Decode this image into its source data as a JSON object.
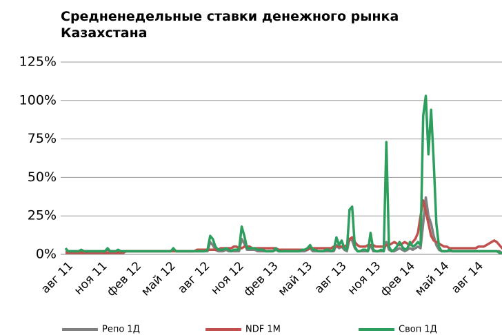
{
  "chart_data": {
    "type": "line",
    "title": "Средненедельные ставки денежного рынка Казахстана",
    "categories": [
      "авг 11",
      null,
      null,
      null,
      null,
      null,
      null,
      null,
      null,
      null,
      null,
      null,
      null,
      "ноя 11",
      null,
      null,
      null,
      null,
      null,
      null,
      null,
      null,
      null,
      null,
      null,
      null,
      "фев 12",
      null,
      null,
      null,
      null,
      null,
      null,
      null,
      null,
      null,
      null,
      null,
      null,
      "май 12",
      null,
      null,
      null,
      null,
      null,
      null,
      null,
      null,
      null,
      null,
      null,
      null,
      "авг 12",
      null,
      null,
      null,
      null,
      null,
      null,
      null,
      null,
      null,
      null,
      null,
      null,
      "ноя 12",
      null,
      null,
      null,
      null,
      null,
      null,
      null,
      null,
      null,
      null,
      null,
      null,
      "фев 13",
      null,
      null,
      null,
      null,
      null,
      null,
      null,
      null,
      null,
      null,
      null,
      null,
      "май 13",
      null,
      null,
      null,
      null,
      null,
      null,
      null,
      null,
      null,
      null,
      null,
      null,
      "авг 13",
      null,
      null,
      null,
      null,
      null,
      null,
      null,
      null,
      null,
      null,
      null,
      null,
      "ноя 13",
      null,
      null,
      null,
      null,
      null,
      null,
      null,
      null,
      null,
      null,
      null,
      null,
      "фев 14",
      null,
      null,
      null,
      null,
      null,
      null,
      null,
      null,
      null,
      null,
      null,
      null,
      "май 14",
      null,
      null,
      null,
      null,
      null,
      null,
      null,
      null,
      null,
      null,
      null,
      null,
      "авг 14",
      null,
      null,
      null,
      null,
      null,
      null,
      null,
      null,
      null,
      null,
      null
    ],
    "series": [
      {
        "name": "Репо 1Д",
        "color": "#808080",
        "values": [
          2,
          2,
          2,
          2,
          2,
          2,
          2,
          2,
          2,
          2,
          2,
          2,
          2,
          2,
          2,
          2,
          3,
          2,
          2,
          2,
          2,
          2,
          2,
          2,
          2,
          2,
          2,
          2,
          2,
          2,
          2,
          2,
          2,
          2,
          2,
          2,
          2,
          2,
          2,
          2,
          2,
          3,
          2,
          2,
          2,
          2,
          2,
          2,
          2,
          2,
          2,
          2,
          2,
          2,
          2,
          8,
          6,
          3,
          2,
          2,
          2,
          3,
          2,
          2,
          2,
          2,
          2,
          10,
          7,
          3,
          3,
          3,
          3,
          2,
          2,
          2,
          2,
          2,
          2,
          2,
          3,
          2,
          2,
          2,
          2,
          2,
          2,
          2,
          2,
          2,
          2,
          2,
          3,
          4,
          2,
          2,
          2,
          2,
          2,
          2,
          2,
          2,
          2,
          6,
          4,
          5,
          3,
          2,
          10,
          9,
          4,
          2,
          2,
          2,
          2,
          2,
          6,
          2,
          2,
          2,
          2,
          2,
          8,
          3,
          2,
          2,
          3,
          4,
          3,
          2,
          3,
          4,
          3,
          4,
          5,
          4,
          20,
          37,
          25,
          20,
          12,
          6,
          3,
          2,
          2,
          2,
          2,
          2,
          2,
          2,
          2,
          2,
          2,
          2,
          2,
          2,
          2,
          2,
          2,
          2,
          2,
          2,
          2,
          2,
          2,
          2,
          1,
          1
        ]
      },
      {
        "name": "NDF 1M",
        "color": "#c0504d",
        "values": [
          1,
          1,
          1,
          1,
          1,
          1,
          1,
          1,
          1,
          1,
          1,
          1,
          1,
          1,
          1,
          1,
          1,
          1,
          1,
          1,
          1,
          1,
          1,
          2,
          2,
          2,
          2,
          2,
          2,
          2,
          2,
          2,
          2,
          2,
          2,
          2,
          2,
          2,
          2,
          2,
          2,
          2,
          2,
          2,
          2,
          2,
          2,
          2,
          2,
          2,
          3,
          3,
          3,
          3,
          3,
          3,
          3,
          3,
          3,
          4,
          4,
          4,
          4,
          4,
          5,
          5,
          4,
          4,
          5,
          5,
          5,
          4,
          4,
          4,
          4,
          4,
          4,
          4,
          4,
          4,
          4,
          3,
          3,
          3,
          3,
          3,
          3,
          3,
          3,
          3,
          3,
          3,
          3,
          4,
          4,
          4,
          4,
          4,
          4,
          4,
          4,
          4,
          5,
          5,
          5,
          5,
          5,
          6,
          10,
          11,
          8,
          6,
          5,
          5,
          5,
          6,
          6,
          6,
          5,
          5,
          5,
          5,
          6,
          6,
          7,
          8,
          7,
          6,
          7,
          8,
          7,
          6,
          8,
          10,
          14,
          25,
          35,
          28,
          20,
          12,
          9,
          8,
          7,
          6,
          5,
          5,
          4,
          4,
          4,
          4,
          4,
          4,
          4,
          4,
          4,
          4,
          4,
          5,
          5,
          5,
          6,
          7,
          8,
          9,
          8,
          6,
          4,
          3
        ]
      },
      {
        "name": "Своп 1Д",
        "color": "#2e9e5e",
        "values": [
          4,
          2,
          2,
          2,
          2,
          2,
          3,
          2,
          2,
          2,
          2,
          2,
          2,
          2,
          2,
          2,
          4,
          2,
          2,
          2,
          3,
          2,
          2,
          2,
          2,
          2,
          2,
          2,
          2,
          2,
          2,
          2,
          2,
          2,
          2,
          2,
          2,
          2,
          2,
          2,
          2,
          4,
          2,
          2,
          2,
          2,
          2,
          2,
          2,
          2,
          2,
          2,
          2,
          2,
          3,
          12,
          10,
          5,
          3,
          3,
          3,
          4,
          3,
          2,
          3,
          3,
          3,
          18,
          12,
          4,
          4,
          4,
          4,
          3,
          3,
          3,
          2,
          2,
          2,
          2,
          4,
          2,
          2,
          2,
          2,
          2,
          2,
          2,
          2,
          2,
          3,
          3,
          4,
          6,
          3,
          3,
          2,
          2,
          2,
          3,
          3,
          2,
          3,
          11,
          6,
          9,
          4,
          3,
          29,
          31,
          5,
          2,
          2,
          3,
          3,
          2,
          14,
          3,
          2,
          2,
          3,
          2,
          73,
          5,
          2,
          3,
          5,
          8,
          5,
          3,
          4,
          8,
          5,
          6,
          8,
          6,
          90,
          103,
          65,
          94,
          60,
          20,
          5,
          2,
          2,
          2,
          3,
          2,
          2,
          2,
          2,
          2,
          2,
          2,
          2,
          2,
          2,
          2,
          2,
          2,
          2,
          2,
          2,
          2,
          2,
          1,
          1,
          0
        ]
      }
    ],
    "ylim": [
      0,
      125
    ],
    "yticks": [
      {
        "value": 0,
        "label": "0%"
      },
      {
        "value": 25,
        "label": "25%"
      },
      {
        "value": 50,
        "label": "50%"
      },
      {
        "value": 75,
        "label": "75%"
      },
      {
        "value": 100,
        "label": "100%"
      },
      {
        "value": 125,
        "label": "125%"
      }
    ],
    "grid": true,
    "legend": "bottom"
  }
}
